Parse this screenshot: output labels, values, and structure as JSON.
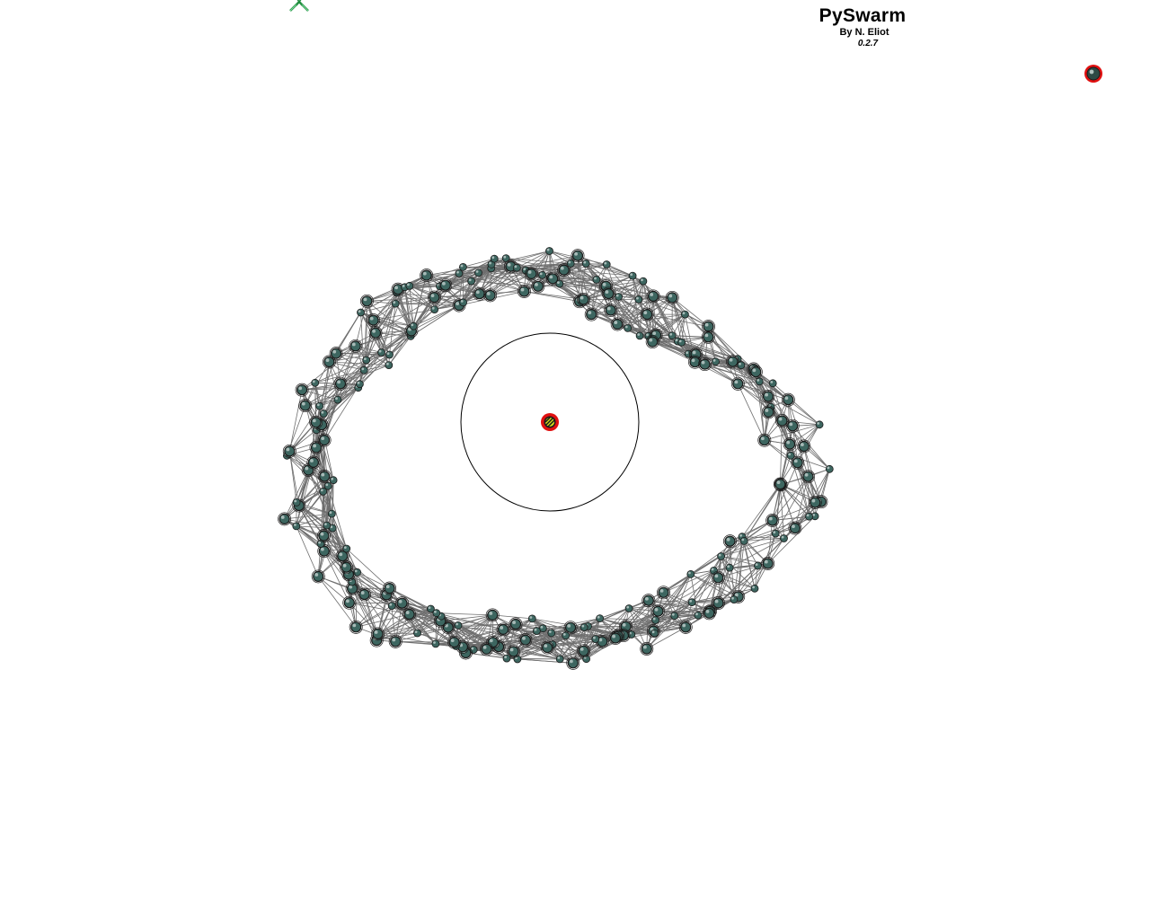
{
  "app": {
    "title": "PySwarm",
    "author": "By N. Eliot",
    "version": "0.2.7"
  },
  "colors": {
    "background": "#ffffff",
    "edge": "#6e6e6e",
    "agent_fill": "#3d6660",
    "agent_outline": "#1a1a1a",
    "agent_highlight": "#ffffff",
    "target_ring": "#e01010",
    "target_core": "#d8dd18",
    "cursor": "#1f8a3c",
    "orbit_circle": "#000000"
  },
  "icons": {
    "cursor": "mouse-cursor-icon",
    "target": "target-marker-icon",
    "spare_agent": "spare-agent-icon",
    "agent": "swarm-agent-icon"
  }
}
